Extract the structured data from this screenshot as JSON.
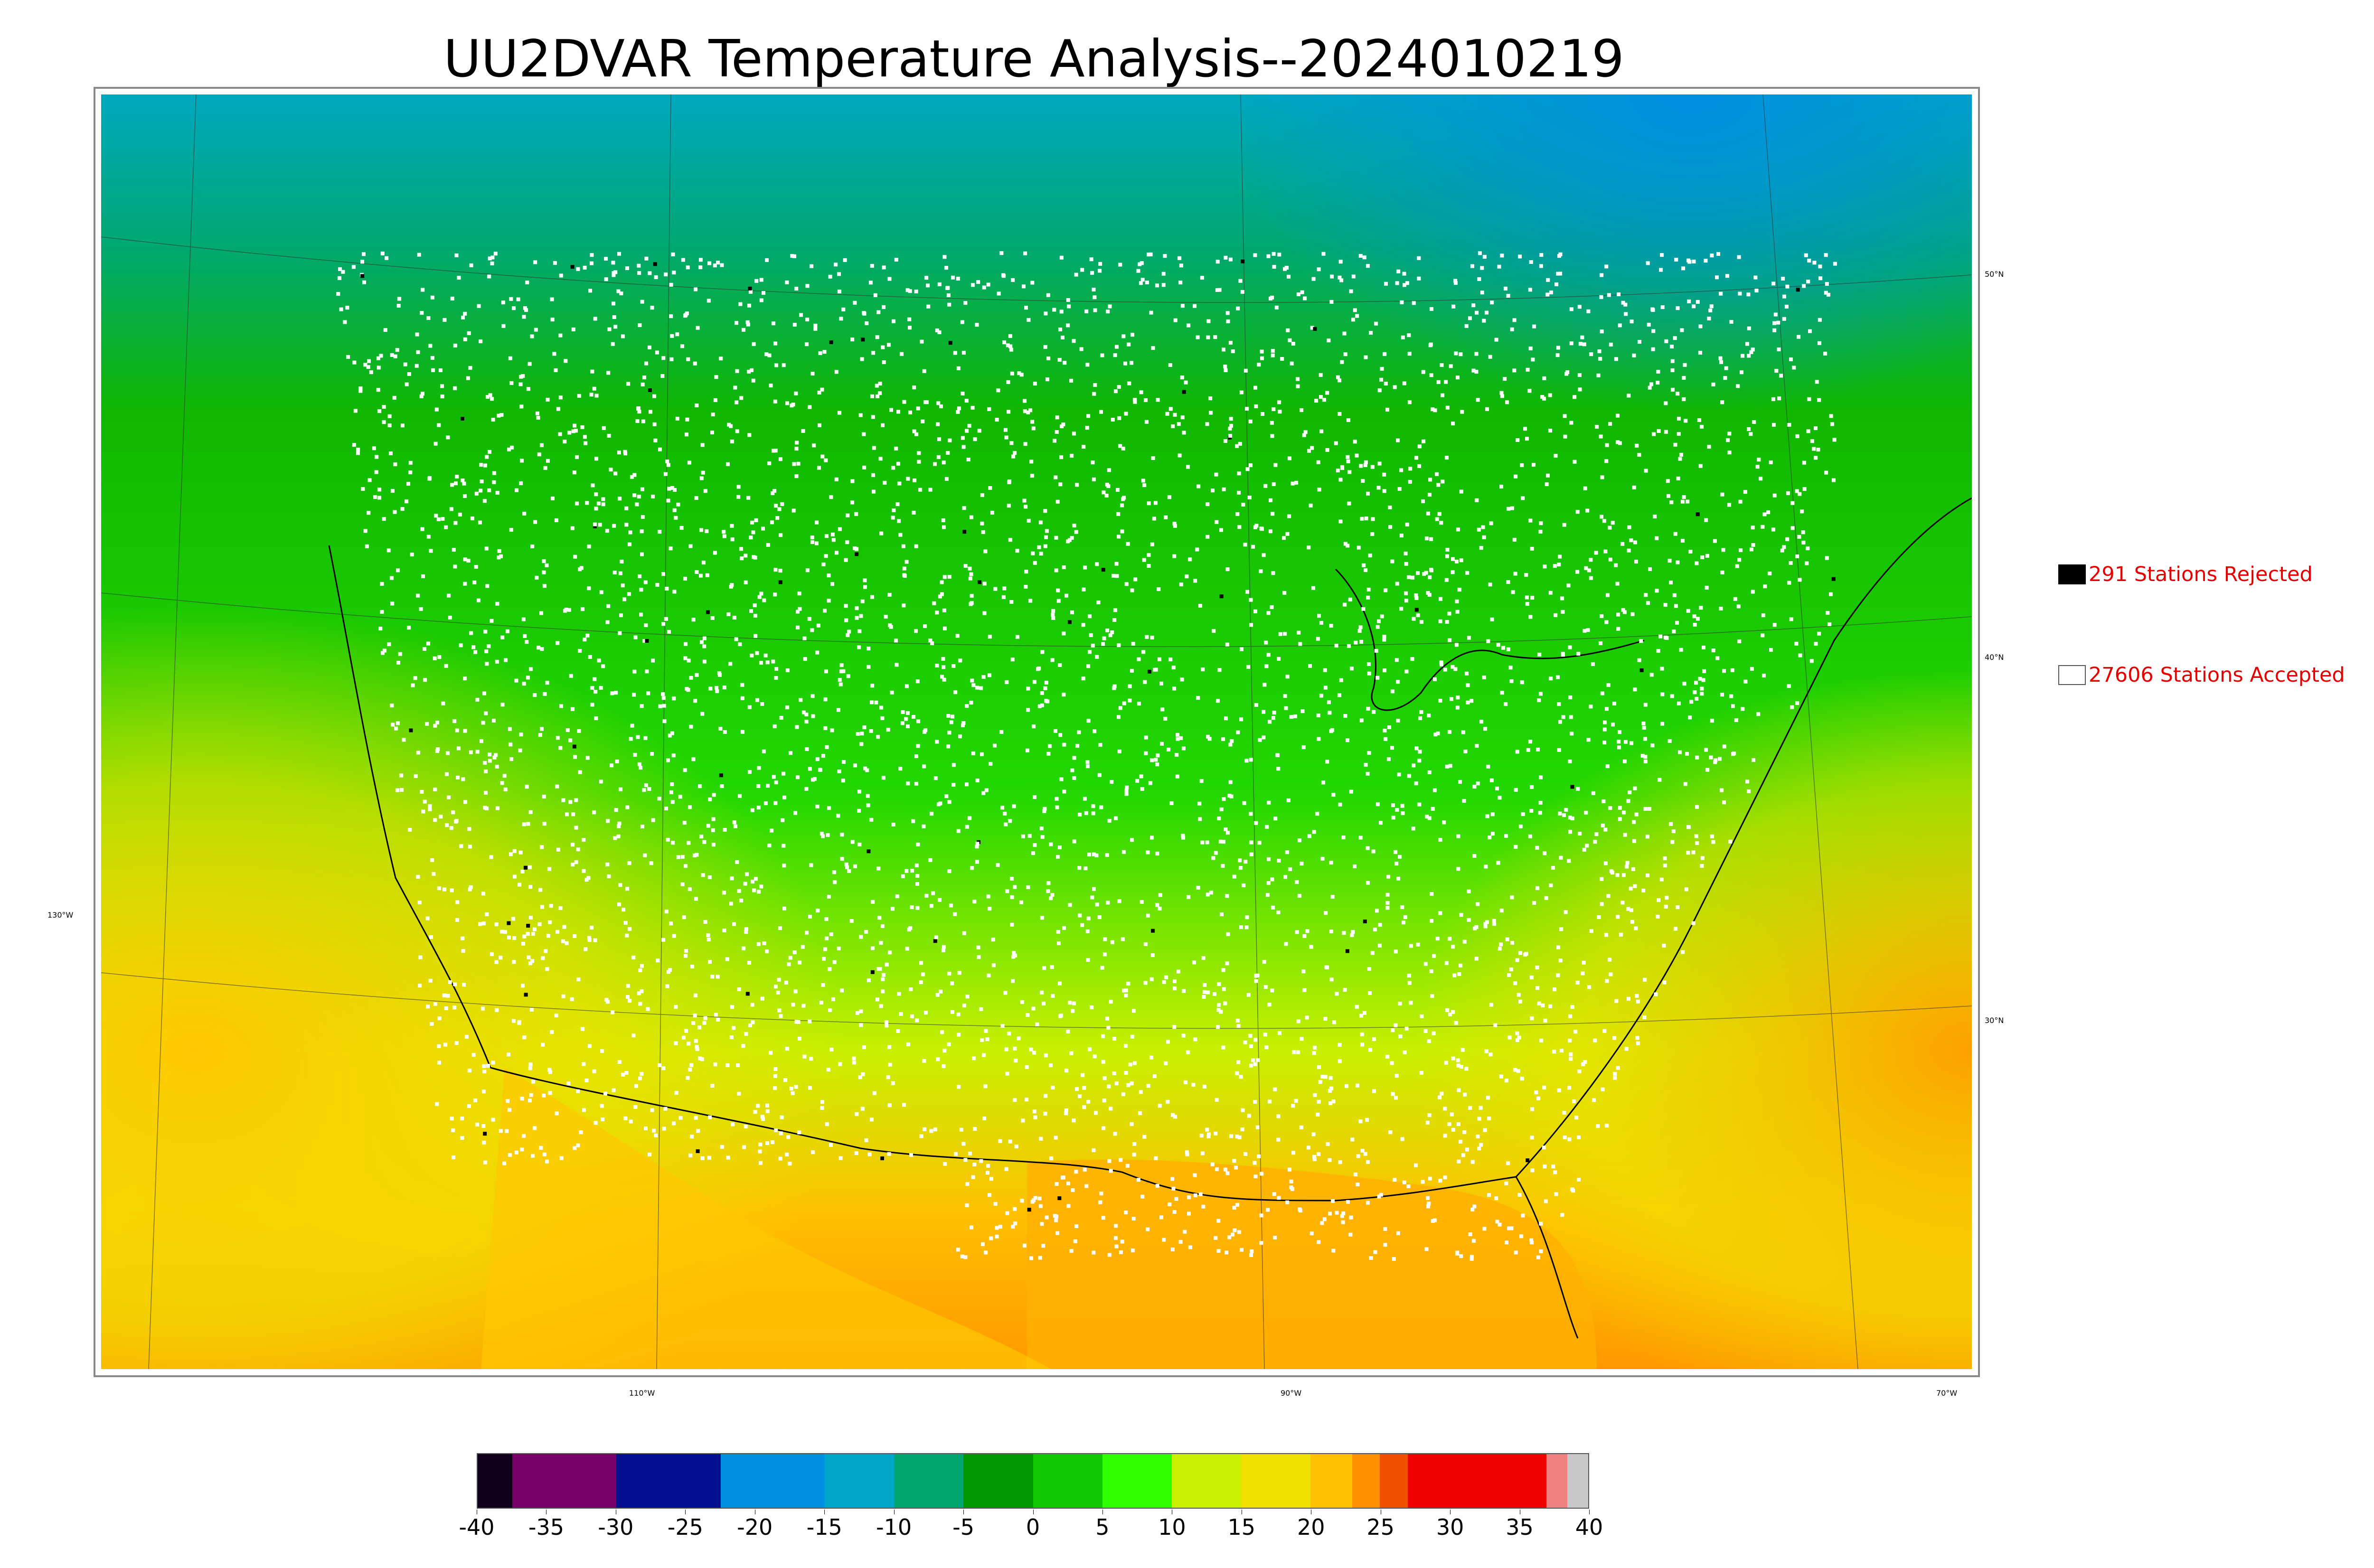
{
  "title": "UU2DVAR Temperature Analysis--2024010219",
  "map": {
    "latitude_labels": [
      "50°N",
      "40°N",
      "30°N"
    ],
    "longitude_labels": [
      "130°W",
      "110°W",
      "90°W",
      "70°W"
    ],
    "region": "Contiguous United States",
    "colors": {
      "ocean_warm": "#ffb400",
      "land_cool": "#22e000",
      "north_cold": "#00a8d0",
      "station_accepted": "#ffffff",
      "station_rejected": "#000000"
    }
  },
  "legend": {
    "rejected": {
      "count": "291",
      "label": "291 Stations Rejected",
      "color": "#000000"
    },
    "accepted": {
      "count": "27606",
      "label": "27606 Stations Accepted",
      "color": "#ffffff"
    }
  },
  "colorbar": {
    "min": -40,
    "max": 40,
    "tick_labels": [
      "-40",
      "-35",
      "-30",
      "-25",
      "-20",
      "-15",
      "-10",
      "-5",
      "0",
      "5",
      "10",
      "15",
      "20",
      "25",
      "30",
      "35",
      "40"
    ],
    "segments": [
      {
        "from": -40,
        "to": -37.5,
        "color": "#10001a"
      },
      {
        "from": -37.5,
        "to": -30,
        "color": "#780068"
      },
      {
        "from": -30,
        "to": -22.5,
        "color": "#001090"
      },
      {
        "from": -22.5,
        "to": -15,
        "color": "#0090e0"
      },
      {
        "from": -15,
        "to": -10,
        "color": "#00a8c8"
      },
      {
        "from": -10,
        "to": -5,
        "color": "#00a870"
      },
      {
        "from": -5,
        "to": 0,
        "color": "#009800"
      },
      {
        "from": 0,
        "to": 5,
        "color": "#10c800"
      },
      {
        "from": 5,
        "to": 10,
        "color": "#30ff00"
      },
      {
        "from": 10,
        "to": 15,
        "color": "#c8f000"
      },
      {
        "from": 15,
        "to": 20,
        "color": "#f0e000"
      },
      {
        "from": 20,
        "to": 23,
        "color": "#ffc000"
      },
      {
        "from": 23,
        "to": 25,
        "color": "#ff9000"
      },
      {
        "from": 25,
        "to": 27,
        "color": "#f05000"
      },
      {
        "from": 27,
        "to": 37,
        "color": "#f00000"
      },
      {
        "from": 37,
        "to": 38.5,
        "color": "#f08080"
      },
      {
        "from": 38.5,
        "to": 40,
        "color": "#c8c8c8"
      }
    ]
  }
}
